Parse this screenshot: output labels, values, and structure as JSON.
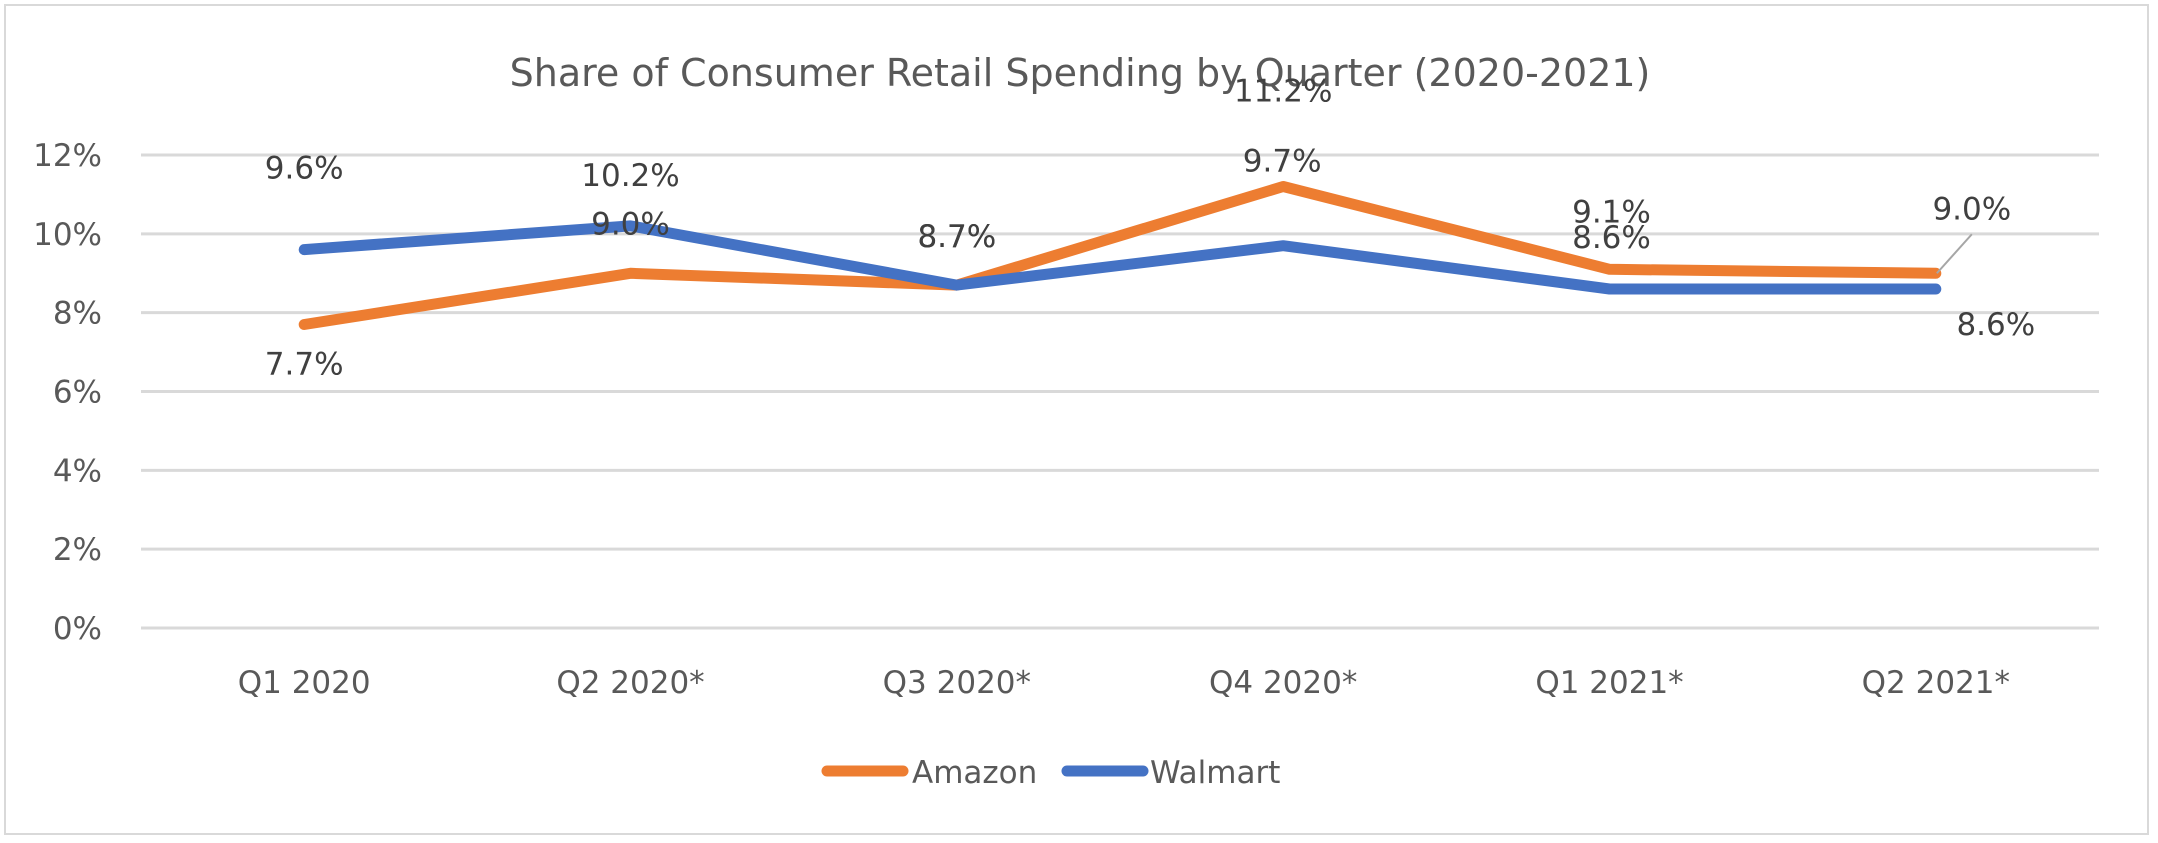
{
  "chart_data": {
    "type": "line",
    "title": "Share of Consumer Retail Spending by Quarter (2020-2021)",
    "xlabel": "",
    "ylabel": "",
    "categories": [
      "Q1 2020",
      "Q2 2020*",
      "Q3 2020*",
      "Q4 2020*",
      "Q1 2021*",
      "Q2 2021*"
    ],
    "series": [
      {
        "name": "Amazon",
        "color": "#ED7D31",
        "values": [
          7.7,
          9.0,
          8.7,
          11.2,
          9.1,
          9.0
        ],
        "labels": [
          "7.7%",
          "9.0%",
          "8.7%",
          "11.2%",
          "9.1%",
          "9.0%"
        ]
      },
      {
        "name": "Walmart",
        "color": "#4472C4",
        "values": [
          9.6,
          10.2,
          8.7,
          9.7,
          8.6,
          8.6
        ],
        "labels": [
          "9.6%",
          "10.2%",
          "8.7%",
          "9.7%",
          "8.6%",
          "8.6%"
        ]
      }
    ],
    "ylim": [
      0,
      12
    ],
    "yticks": [
      0,
      2,
      4,
      6,
      8,
      10,
      12
    ],
    "ytick_labels": [
      "0%",
      "2%",
      "4%",
      "6%",
      "8%",
      "10%",
      "12%"
    ],
    "grid": true,
    "legend": "bottom-center",
    "gridline_color": "#D9D9D9",
    "text_color": "#595959"
  }
}
